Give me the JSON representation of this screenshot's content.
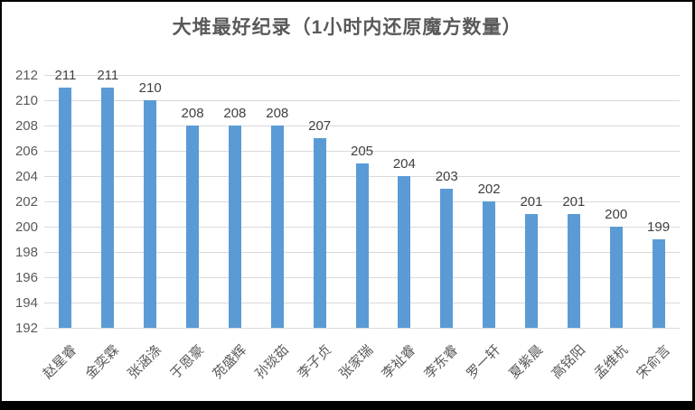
{
  "chart_data": {
    "type": "bar",
    "title": "大堆最好纪录（1小时内还原魔方数量）",
    "categories": [
      "赵星睿",
      "金奕霖",
      "张涵涤",
      "于恩豪",
      "苑盛辉",
      "孙琰茹",
      "李子贞",
      "张家瑞",
      "李祉睿",
      "李东睿",
      "罗一轩",
      "夏紫晨",
      "高铭阳",
      "孟维杭",
      "宋俞言"
    ],
    "values": [
      211,
      211,
      210,
      208,
      208,
      208,
      207,
      205,
      204,
      203,
      202,
      201,
      201,
      200,
      199
    ],
    "xlabel": "",
    "ylabel": "",
    "ylim": [
      192,
      212
    ],
    "ytick_step": 2,
    "yticks": [
      192,
      194,
      196,
      198,
      200,
      202,
      204,
      206,
      208,
      210,
      212
    ],
    "grid": true,
    "legend": "none",
    "data_labels": true,
    "colors": {
      "bar": "#5b9bd5",
      "gridline": "#d9d9d9",
      "title": "#595959",
      "axis_text": "#595959",
      "value_label": "#404040",
      "frame_border": "#000000",
      "background": "#ffffff"
    }
  }
}
